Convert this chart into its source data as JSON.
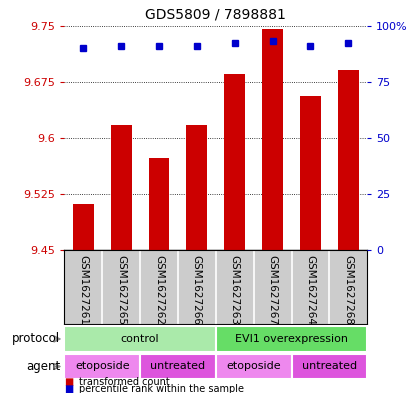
{
  "title": "GDS5809 / 7898881",
  "samples": [
    "GSM1627261",
    "GSM1627265",
    "GSM1627262",
    "GSM1627266",
    "GSM1627263",
    "GSM1627267",
    "GSM1627264",
    "GSM1627268"
  ],
  "transformed_counts": [
    9.511,
    9.617,
    9.573,
    9.617,
    9.685,
    9.745,
    9.655,
    9.69
  ],
  "percentile_ranks": [
    90,
    91,
    91,
    91,
    92,
    93,
    91,
    92
  ],
  "ylim": [
    9.45,
    9.75
  ],
  "yticks": [
    9.45,
    9.525,
    9.6,
    9.675,
    9.75
  ],
  "ytick_labels": [
    "9.45",
    "9.525",
    "9.6",
    "9.675",
    "9.75"
  ],
  "right_yticks": [
    0,
    25,
    50,
    75,
    100
  ],
  "right_ytick_labels": [
    "0",
    "25",
    "50",
    "75",
    "100%"
  ],
  "bar_color": "#cc0000",
  "dot_color": "#0000cc",
  "bar_baseline": 9.45,
  "protocol_groups": [
    {
      "label": "control",
      "start": 0,
      "end": 4,
      "color": "#aaeaaa"
    },
    {
      "label": "EVI1 overexpression",
      "start": 4,
      "end": 8,
      "color": "#66dd66"
    }
  ],
  "agent_groups": [
    {
      "label": "etoposide",
      "start": 0,
      "end": 2,
      "color": "#ee88ee"
    },
    {
      "label": "untreated",
      "start": 2,
      "end": 4,
      "color": "#dd55dd"
    },
    {
      "label": "etoposide",
      "start": 4,
      "end": 6,
      "color": "#ee88ee"
    },
    {
      "label": "untreated",
      "start": 6,
      "end": 8,
      "color": "#dd55dd"
    }
  ],
  "sample_bg": "#cccccc",
  "left_label_color": "#cc0000",
  "right_label_color": "#0000cc",
  "arrow_color": "#888888",
  "bar_width": 0.55
}
